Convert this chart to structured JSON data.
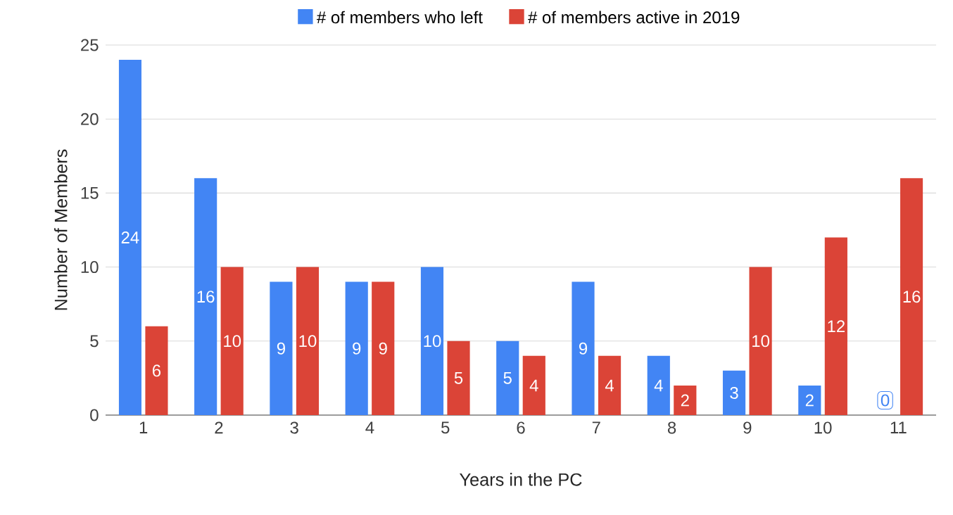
{
  "chart_data": {
    "type": "bar",
    "xlabel": "Years in the PC",
    "ylabel": "Number of Members",
    "categories": [
      "1",
      "2",
      "3",
      "4",
      "5",
      "6",
      "7",
      "8",
      "9",
      "10",
      "11"
    ],
    "series": [
      {
        "name": "# of members who left",
        "color": "#4285f4",
        "values": [
          24,
          16,
          9,
          9,
          10,
          5,
          9,
          4,
          3,
          2,
          0
        ]
      },
      {
        "name": "# of members active in 2019",
        "color": "#db4437",
        "values": [
          6,
          10,
          10,
          9,
          5,
          4,
          4,
          2,
          10,
          12,
          16
        ]
      }
    ],
    "ylim": [
      0,
      25
    ],
    "yticks": [
      0,
      5,
      10,
      15,
      20,
      25
    ],
    "grid": "y",
    "legend": "top",
    "data_labels": true
  }
}
